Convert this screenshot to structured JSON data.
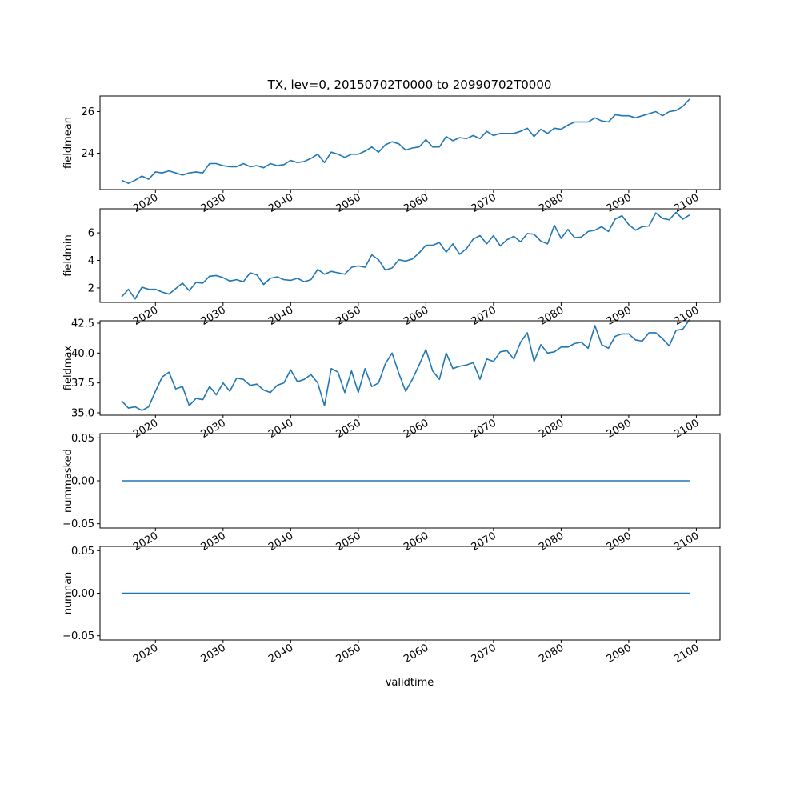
{
  "title": "TX, lev=0, 20150702T0000 to 20990702T0000",
  "chart_data": {
    "type": "line",
    "title": "TX, lev=0, 20150702T0000 to 20990702T0000",
    "xlabel": "validtime",
    "grid": false,
    "line_color": "#1f77b4",
    "x": [
      2015,
      2016,
      2017,
      2018,
      2019,
      2020,
      2021,
      2022,
      2023,
      2024,
      2025,
      2026,
      2027,
      2028,
      2029,
      2030,
      2031,
      2032,
      2033,
      2034,
      2035,
      2036,
      2037,
      2038,
      2039,
      2040,
      2041,
      2042,
      2043,
      2044,
      2045,
      2046,
      2047,
      2048,
      2049,
      2050,
      2051,
      2052,
      2053,
      2054,
      2055,
      2056,
      2057,
      2058,
      2059,
      2060,
      2061,
      2062,
      2063,
      2064,
      2065,
      2066,
      2067,
      2068,
      2069,
      2070,
      2071,
      2072,
      2073,
      2074,
      2075,
      2076,
      2077,
      2078,
      2079,
      2080,
      2081,
      2082,
      2083,
      2084,
      2085,
      2086,
      2087,
      2088,
      2089,
      2090,
      2091,
      2092,
      2093,
      2094,
      2095,
      2096,
      2097,
      2098,
      2099
    ],
    "xlim": [
      2011.8,
      2103.5
    ],
    "xticks": [
      "2020",
      "2030",
      "2040",
      "2050",
      "2060",
      "2070",
      "2080",
      "2090",
      "2100"
    ],
    "panels": [
      {
        "ylabel": "fieldmean",
        "ylim": [
          22.25,
          26.75
        ],
        "yticks": [
          "24",
          "26"
        ],
        "values": [
          22.7,
          22.55,
          22.7,
          22.9,
          22.75,
          23.1,
          23.05,
          23.15,
          23.05,
          22.95,
          23.05,
          23.1,
          23.05,
          23.5,
          23.5,
          23.4,
          23.35,
          23.35,
          23.5,
          23.35,
          23.4,
          23.3,
          23.5,
          23.4,
          23.45,
          23.65,
          23.55,
          23.6,
          23.75,
          23.95,
          23.55,
          24.05,
          23.95,
          23.8,
          23.95,
          23.95,
          24.1,
          24.3,
          24.05,
          24.4,
          24.55,
          24.45,
          24.15,
          24.25,
          24.3,
          24.65,
          24.3,
          24.3,
          24.8,
          24.6,
          24.75,
          24.7,
          24.85,
          24.7,
          25.05,
          24.85,
          24.95,
          24.95,
          24.95,
          25.05,
          25.2,
          24.8,
          25.15,
          24.95,
          25.2,
          25.15,
          25.35,
          25.5,
          25.5,
          25.5,
          25.7,
          25.55,
          25.5,
          25.85,
          25.8,
          25.8,
          25.7,
          25.8,
          25.9,
          26.0,
          25.8,
          26.0,
          26.05,
          26.25,
          26.6
        ]
      },
      {
        "ylabel": "fieldmin",
        "ylim": [
          0.95,
          7.75
        ],
        "yticks": [
          "2",
          "4",
          "6"
        ],
        "values": [
          1.35,
          1.9,
          1.2,
          2.05,
          1.9,
          1.9,
          1.7,
          1.55,
          1.95,
          2.35,
          1.8,
          2.4,
          2.35,
          2.85,
          2.9,
          2.75,
          2.5,
          2.6,
          2.45,
          3.1,
          2.95,
          2.25,
          2.7,
          2.8,
          2.6,
          2.55,
          2.7,
          2.45,
          2.6,
          3.35,
          3.0,
          3.2,
          3.1,
          3.0,
          3.5,
          3.6,
          3.5,
          4.4,
          4.05,
          3.3,
          3.45,
          4.05,
          3.95,
          4.1,
          4.55,
          5.1,
          5.1,
          5.3,
          4.6,
          5.2,
          4.45,
          4.85,
          5.55,
          5.8,
          5.2,
          5.8,
          5.05,
          5.5,
          5.75,
          5.35,
          5.95,
          5.9,
          5.4,
          5.2,
          6.55,
          5.6,
          6.25,
          5.65,
          5.7,
          6.1,
          6.2,
          6.45,
          6.1,
          7.0,
          7.25,
          6.6,
          6.2,
          6.45,
          6.5,
          7.45,
          7.05,
          6.95,
          7.5,
          7.0,
          7.3
        ]
      },
      {
        "ylabel": "fieldmax",
        "ylim": [
          34.8,
          42.7
        ],
        "yticks": [
          "35.0",
          "37.5",
          "40.0",
          "42.5"
        ],
        "values": [
          36.0,
          35.4,
          35.5,
          35.2,
          35.5,
          36.8,
          38.0,
          38.4,
          37.0,
          37.2,
          35.6,
          36.2,
          36.1,
          37.2,
          36.5,
          37.5,
          36.8,
          37.9,
          37.8,
          37.3,
          37.4,
          36.9,
          36.7,
          37.3,
          37.5,
          38.6,
          37.6,
          37.8,
          38.2,
          37.5,
          35.6,
          38.7,
          38.4,
          36.7,
          38.5,
          36.7,
          38.7,
          37.2,
          37.5,
          39.1,
          40.0,
          38.3,
          36.8,
          37.8,
          39.0,
          40.3,
          38.5,
          37.8,
          40.0,
          38.7,
          38.9,
          39.0,
          39.2,
          37.8,
          39.5,
          39.3,
          40.1,
          40.2,
          39.5,
          40.9,
          41.7,
          39.3,
          40.7,
          40.0,
          40.1,
          40.5,
          40.5,
          40.8,
          40.9,
          40.4,
          42.3,
          40.7,
          40.4,
          41.4,
          41.6,
          41.6,
          41.1,
          41.0,
          41.7,
          41.7,
          41.2,
          40.6,
          41.9,
          42.0,
          42.8
        ]
      },
      {
        "ylabel": "nummasked",
        "ylim": [
          -0.055,
          0.055
        ],
        "yticks": [
          "0.05",
          "0.00",
          "−0.05"
        ],
        "tick_values": [
          0.05,
          0.0,
          -0.05
        ],
        "values": "all_zero"
      },
      {
        "ylabel": "numnan",
        "ylim": [
          -0.055,
          0.055
        ],
        "yticks": [
          "0.05",
          "0.00",
          "−0.05"
        ],
        "tick_values": [
          0.05,
          0.0,
          -0.05
        ],
        "values": "all_zero"
      }
    ]
  }
}
